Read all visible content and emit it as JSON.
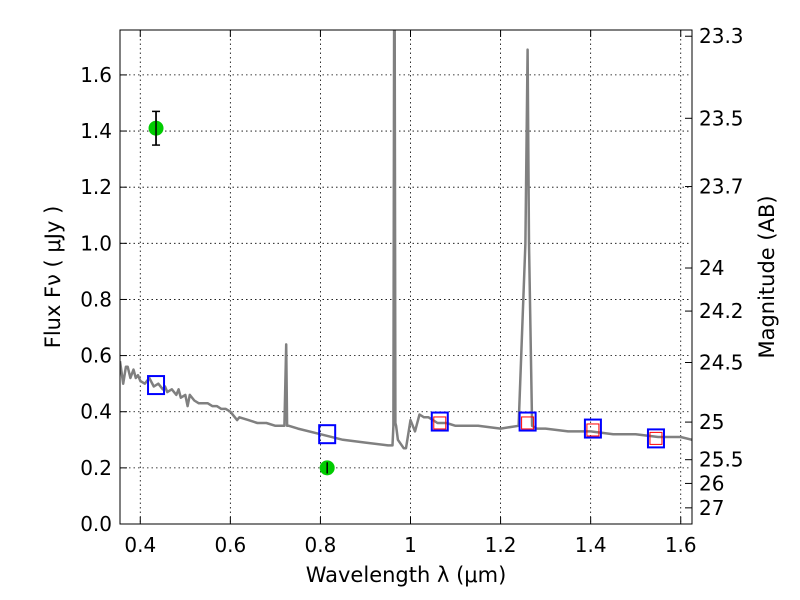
{
  "chart_data": {
    "type": "line",
    "xlabel": "Wavelength  λ (μm)",
    "ylabel": "Flux  Fν  ( μJy )",
    "ylabel_right": "Magnitude (AB)",
    "xlim": [
      0.355,
      1.625
    ],
    "ylim": [
      0.0,
      1.76
    ],
    "grid": true,
    "x_ticks": [
      {
        "v": 0.4,
        "label": "0.4"
      },
      {
        "v": 0.6,
        "label": "0.6"
      },
      {
        "v": 0.8,
        "label": "0.8"
      },
      {
        "v": 1.0,
        "label": "1"
      },
      {
        "v": 1.2,
        "label": "1.2"
      },
      {
        "v": 1.4,
        "label": "1.4"
      },
      {
        "v": 1.6,
        "label": "1.6"
      }
    ],
    "y_ticks": [
      {
        "v": 0.0,
        "label": "0.0"
      },
      {
        "v": 0.2,
        "label": "0.2"
      },
      {
        "v": 0.4,
        "label": "0.4"
      },
      {
        "v": 0.6,
        "label": "0.6"
      },
      {
        "v": 0.8,
        "label": "0.8"
      },
      {
        "v": 1.0,
        "label": "1.0"
      },
      {
        "v": 1.2,
        "label": "1.2"
      },
      {
        "v": 1.4,
        "label": "1.4"
      },
      {
        "v": 1.6,
        "label": "1.6"
      }
    ],
    "right_ticks": [
      {
        "v": 23.3,
        "label": "23.3"
      },
      {
        "v": 23.5,
        "label": "23.5"
      },
      {
        "v": 23.7,
        "label": "23.7"
      },
      {
        "v": 24,
        "label": "24"
      },
      {
        "v": 24.2,
        "label": "24.2"
      },
      {
        "v": 24.5,
        "label": "24.5"
      },
      {
        "v": 25,
        "label": "25"
      },
      {
        "v": 25.5,
        "label": "25.5"
      },
      {
        "v": 26,
        "label": "26"
      },
      {
        "v": 27,
        "label": "27"
      }
    ],
    "series": [
      {
        "kind": "model_spectrum",
        "color": "#808080",
        "x": [
          0.355,
          0.362,
          0.368,
          0.372,
          0.378,
          0.385,
          0.39,
          0.395,
          0.4,
          0.41,
          0.42,
          0.43,
          0.44,
          0.45,
          0.455,
          0.46,
          0.47,
          0.48,
          0.485,
          0.49,
          0.5,
          0.505,
          0.51,
          0.52,
          0.53,
          0.54,
          0.55,
          0.56,
          0.57,
          0.58,
          0.59,
          0.6,
          0.61,
          0.615,
          0.62,
          0.64,
          0.66,
          0.68,
          0.7,
          0.72,
          0.724,
          0.726,
          0.728,
          0.73,
          0.75,
          0.8,
          0.85,
          0.9,
          0.95,
          0.96,
          0.962,
          0.9635,
          0.965,
          0.9665,
          0.968,
          0.972,
          0.985,
          0.99,
          1.0,
          1.01,
          1.02,
          1.03,
          1.04,
          1.06,
          1.08,
          1.1,
          1.15,
          1.2,
          1.24,
          1.255,
          1.26,
          1.263,
          1.27,
          1.28,
          1.3,
          1.35,
          1.4,
          1.45,
          1.5,
          1.55,
          1.6,
          1.625
        ],
        "y": [
          0.58,
          0.5,
          0.56,
          0.56,
          0.52,
          0.55,
          0.52,
          0.53,
          0.51,
          0.5,
          0.52,
          0.49,
          0.5,
          0.48,
          0.49,
          0.47,
          0.48,
          0.46,
          0.48,
          0.45,
          0.46,
          0.42,
          0.46,
          0.44,
          0.43,
          0.43,
          0.43,
          0.42,
          0.42,
          0.41,
          0.41,
          0.4,
          0.38,
          0.37,
          0.38,
          0.37,
          0.36,
          0.36,
          0.35,
          0.35,
          0.64,
          0.35,
          0.35,
          0.35,
          0.34,
          0.32,
          0.3,
          0.29,
          0.28,
          0.28,
          0.35,
          1.76,
          1.76,
          0.36,
          0.35,
          0.3,
          0.27,
          0.27,
          0.37,
          0.33,
          0.39,
          0.38,
          0.38,
          0.36,
          0.36,
          0.35,
          0.35,
          0.34,
          0.35,
          1.0,
          1.69,
          1.0,
          0.35,
          0.34,
          0.34,
          0.33,
          0.33,
          0.32,
          0.32,
          0.31,
          0.31,
          0.3
        ]
      },
      {
        "kind": "model_photometry",
        "marker": "square",
        "color": "#0000ff",
        "x": [
          0.435,
          0.815,
          1.065,
          1.26,
          1.405,
          1.545
        ],
        "y": [
          0.495,
          0.32,
          0.365,
          0.365,
          0.34,
          0.305
        ]
      },
      {
        "kind": "observed_photometry_nir",
        "marker": "square",
        "color": "#ff0000",
        "x": [
          1.065,
          1.26,
          1.405,
          1.545
        ],
        "y": [
          0.36,
          0.36,
          0.335,
          0.305
        ]
      },
      {
        "kind": "observed_photometry_optical",
        "marker": "circle",
        "color": "#00cc00",
        "x": [
          0.435,
          0.815
        ],
        "y": [
          1.41,
          0.2
        ],
        "yerr": [
          0.06,
          0.02
        ]
      }
    ]
  }
}
